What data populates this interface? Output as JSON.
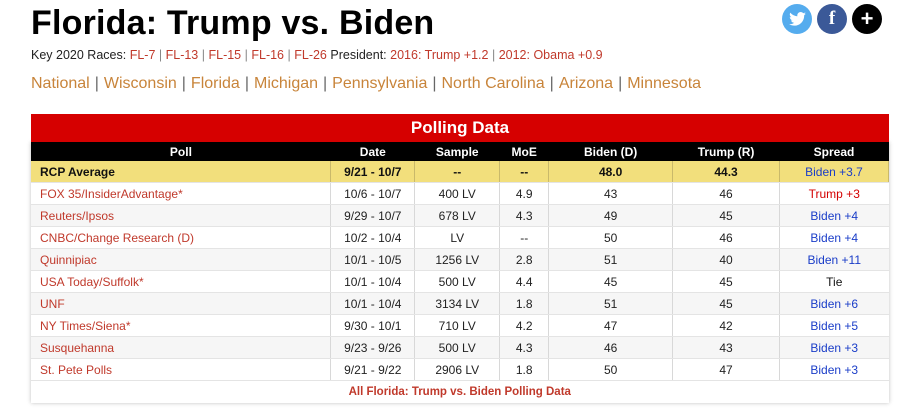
{
  "page_title": "Florida: Trump vs. Biden",
  "social": {
    "twitter": "t",
    "facebook": "f",
    "more": "+"
  },
  "key_races": {
    "prefix": "Key 2020 Races:",
    "races": [
      "FL-7",
      "FL-13",
      "FL-15",
      "FL-16",
      "FL-26"
    ],
    "president_label": "President:",
    "pres_2016": "2016: Trump +1.2",
    "pres_2012": "2012: Obama +0.9"
  },
  "states_nav": [
    "National",
    "Wisconsin",
    "Florida",
    "Michigan",
    "Pennsylvania",
    "North Carolina",
    "Arizona",
    "Minnesota"
  ],
  "table": {
    "caption": "Polling Data",
    "headers": [
      "Poll",
      "Date",
      "Sample",
      "MoE",
      "Biden (D)",
      "Trump (R)",
      "Spread"
    ],
    "rcp": {
      "poll": "RCP Average",
      "date": "9/21 - 10/7",
      "sample": "--",
      "moe": "--",
      "biden": "48.0",
      "trump": "44.3",
      "spread": "Biden +3.7"
    },
    "rows": [
      {
        "poll": "FOX 35/InsiderAdvantage*",
        "date": "10/6 - 10/7",
        "sample": "400 LV",
        "moe": "4.9",
        "biden": "43",
        "trump": "46",
        "spread": "Trump +3"
      },
      {
        "poll": "Reuters/Ipsos",
        "date": "9/29 - 10/7",
        "sample": "678 LV",
        "moe": "4.3",
        "biden": "49",
        "trump": "45",
        "spread": "Biden +4"
      },
      {
        "poll": "CNBC/Change Research (D)",
        "date": "10/2 - 10/4",
        "sample": "LV",
        "moe": "--",
        "biden": "50",
        "trump": "46",
        "spread": "Biden +4"
      },
      {
        "poll": "Quinnipiac",
        "date": "10/1 - 10/5",
        "sample": "1256 LV",
        "moe": "2.8",
        "biden": "51",
        "trump": "40",
        "spread": "Biden +11"
      },
      {
        "poll": "USA Today/Suffolk*",
        "date": "10/1 - 10/4",
        "sample": "500 LV",
        "moe": "4.4",
        "biden": "45",
        "trump": "45",
        "spread": "Tie"
      },
      {
        "poll": "UNF",
        "date": "10/1 - 10/4",
        "sample": "3134 LV",
        "moe": "1.8",
        "biden": "51",
        "trump": "45",
        "spread": "Biden +6"
      },
      {
        "poll": "NY Times/Siena*",
        "date": "9/30 - 10/1",
        "sample": "710 LV",
        "moe": "4.2",
        "biden": "47",
        "trump": "42",
        "spread": "Biden +5"
      },
      {
        "poll": "Susquehanna",
        "date": "9/23 - 9/26",
        "sample": "500 LV",
        "moe": "4.3",
        "biden": "46",
        "trump": "43",
        "spread": "Biden +3"
      },
      {
        "poll": "St. Pete Polls",
        "date": "9/21 - 9/22",
        "sample": "2906 LV",
        "moe": "1.8",
        "biden": "50",
        "trump": "47",
        "spread": "Biden +3"
      }
    ],
    "footer_link": "All Florida: Trump vs. Biden Polling Data"
  },
  "colors": {
    "header_red": "#d60000",
    "rcp_yellow": "#f2df7c",
    "biden_blue": "#1a3dc8",
    "trump_red": "#d40000",
    "link_orange": "#c8843a",
    "poll_link": "#c0392b"
  }
}
